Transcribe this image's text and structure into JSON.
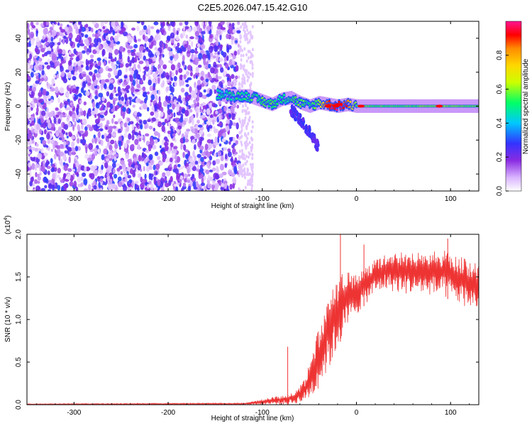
{
  "title": "C2E5.2026.047.15.42.G10",
  "chart_data": [
    {
      "type": "heatmap",
      "name": "spectrogram",
      "xlabel": "Height of straight line (km)",
      "ylabel": "Frequency (Hz)",
      "xlim": [
        -350,
        130
      ],
      "ylim": [
        -50,
        50
      ],
      "xticks": [
        -300,
        -200,
        -100,
        0,
        100
      ],
      "xtick_labels": [
        "-300",
        "-200",
        "-100",
        "0",
        "100"
      ],
      "yticks": [
        -40,
        -20,
        0,
        20,
        40
      ],
      "ytick_labels": [
        "-40",
        "-20",
        "0",
        "20",
        "40"
      ],
      "colorbar": {
        "label": "Normalized spectral amplitude",
        "range": [
          0,
          1
        ],
        "ticks": [
          0.0,
          0.2,
          0.4,
          0.6,
          0.8
        ],
        "tick_labels": [
          "0.0",
          "0.2",
          "0.4",
          "0.6",
          "0.8"
        ],
        "colors": [
          "#ffffff",
          "#d9b3ff",
          "#8a2be2",
          "#3333ff",
          "#00c8ff",
          "#00ff66",
          "#ccff00",
          "#ffd700",
          "#ff8c00",
          "#ff0000",
          "#ff1493"
        ]
      },
      "noise_region": {
        "x": [
          -350,
          -125
        ],
        "amplitude": [
          0.1,
          0.3
        ]
      },
      "signal_track": {
        "x": [
          -148,
          -130,
          -115,
          -100,
          -90,
          -80,
          -70,
          -60,
          -50,
          -40,
          -30,
          -20,
          -10,
          0,
          20,
          50,
          90,
          130
        ],
        "freq": [
          7,
          6,
          6,
          3,
          1,
          4,
          5,
          2,
          0,
          2,
          1,
          0,
          1,
          0,
          0,
          0,
          0,
          0
        ],
        "amp": [
          0.45,
          0.5,
          0.5,
          0.55,
          0.55,
          0.5,
          0.5,
          0.55,
          0.5,
          0.6,
          0.9,
          0.95,
          0.9,
          0.6,
          0.55,
          0.55,
          0.6,
          0.55
        ]
      },
      "descending_feature": {
        "x": [
          -70,
          -60,
          -50,
          -45,
          -40
        ],
        "freq": [
          -2,
          -8,
          -15,
          -20,
          -25
        ]
      }
    },
    {
      "type": "line",
      "name": "snr",
      "xlabel": "Height of straight line (km)",
      "ylabel": "SNR (10 * v/v)",
      "y_multiplier_label": "(x10",
      "y_multiplier_exp": "4",
      "y_multiplier_close": ")",
      "xlim": [
        -350,
        130
      ],
      "ylim": [
        0.0,
        2.0
      ],
      "xticks": [
        -300,
        -200,
        -100,
        0,
        100
      ],
      "xtick_labels": [
        "-300",
        "-200",
        "-100",
        "0",
        "100"
      ],
      "yticks": [
        0.0,
        0.5,
        1.0,
        1.5,
        2.0
      ],
      "ytick_labels": [
        "0.0",
        "0.5",
        "1.0",
        "1.5",
        "2.0"
      ],
      "color": "#ee3333",
      "envelope": {
        "x": [
          -350,
          -120,
          -105,
          -90,
          -75,
          -65,
          -55,
          -45,
          -35,
          -25,
          -15,
          0,
          15,
          30,
          50,
          70,
          95,
          115,
          130
        ],
        "upper": [
          0.01,
          0.02,
          0.05,
          0.09,
          0.12,
          0.16,
          0.3,
          0.7,
          1.1,
          1.4,
          1.55,
          1.55,
          1.68,
          1.78,
          1.8,
          1.78,
          1.82,
          1.72,
          1.65
        ],
        "lower": [
          0.0,
          0.0,
          0.0,
          0.0,
          0.0,
          0.01,
          0.03,
          0.1,
          0.3,
          0.5,
          0.8,
          1.05,
          1.25,
          1.35,
          1.3,
          1.3,
          1.25,
          1.15,
          1.1
        ]
      },
      "spikes": [
        {
          "x": -73,
          "y": 0.68
        },
        {
          "x": -17,
          "y": 2.0
        },
        {
          "x": 8,
          "y": 1.88
        },
        {
          "x": 97,
          "y": 1.95
        }
      ]
    }
  ]
}
